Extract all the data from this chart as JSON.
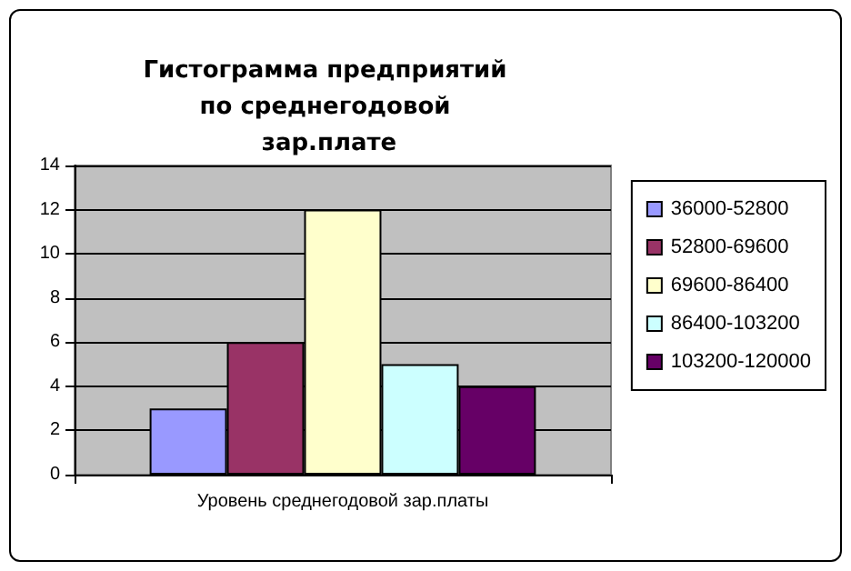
{
  "chart_data": {
    "type": "bar",
    "title": "Гистограмма предприятий по среднегодовой зар.плате",
    "categories": [
      "Уровень среднегодовой зар.платы"
    ],
    "series": [
      {
        "name": "36000-52800",
        "color": "#9999ff",
        "values": [
          3
        ]
      },
      {
        "name": "52800-69600",
        "color": "#993366",
        "values": [
          6
        ]
      },
      {
        "name": "69600-86400",
        "color": "#ffffcc",
        "values": [
          12
        ]
      },
      {
        "name": "86400-103200",
        "color": "#ccffff",
        "values": [
          5
        ]
      },
      {
        "name": "103200-120000",
        "color": "#660066",
        "values": [
          4
        ]
      }
    ],
    "ylim": [
      0,
      14
    ],
    "yticks": [
      0,
      2,
      4,
      6,
      8,
      10,
      12,
      14
    ],
    "grid": "y",
    "legend": "right"
  }
}
